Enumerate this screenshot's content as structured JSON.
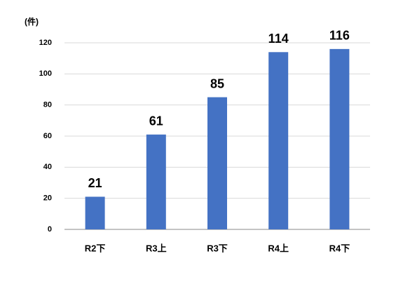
{
  "chart_data": {
    "type": "bar",
    "y_label": "(件)",
    "categories": [
      "R2下",
      "R3上",
      "R3下",
      "R4上",
      "R4下"
    ],
    "values": [
      21,
      61,
      85,
      114,
      116
    ],
    "color": "#4472c4",
    "ylim": [
      0,
      120
    ],
    "yticks": [
      0,
      20,
      40,
      60,
      80,
      100,
      120
    ],
    "grid": true
  }
}
